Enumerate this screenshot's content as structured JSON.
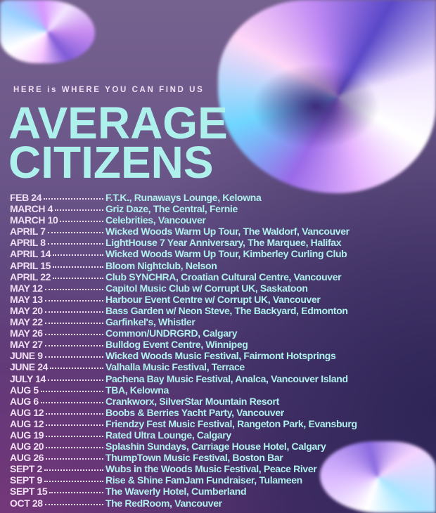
{
  "header": {
    "subtitle": "HERE is WHERE YOU CAN FIND US",
    "title_line_1": "AVERAGE",
    "title_line_2": "CITIZENS"
  },
  "colors": {
    "title": "#aef0ec",
    "date": "#f1def4",
    "background": "#6a5588"
  },
  "schedule": [
    {
      "date": "FEB 24",
      "venue": "F.T.K., Runaways Lounge, Kelowna"
    },
    {
      "date": "MARCH 4",
      "venue": "Griz Daze, The Central, Fernie"
    },
    {
      "date": "MARCH 10",
      "venue": "Celebrities, Vancouver"
    },
    {
      "date": "APRIL 7",
      "venue": "Wicked Woods Warm Up Tour, The Waldorf, Vancouver"
    },
    {
      "date": "APRIL 8",
      "venue": "LightHouse 7 Year Anniversary, The Marquee, Halifax"
    },
    {
      "date": "APRIL 14",
      "venue": "Wicked Woods Warm Up Tour, Kimberley Curling Club"
    },
    {
      "date": "APRIL 15",
      "venue": "Bloom Nightclub, Nelson"
    },
    {
      "date": "APRIL 22",
      "venue": "Club SYNCHRA, Croatian Cultural Centre, Vancouver"
    },
    {
      "date": "MAY 12",
      "venue": "Capitol Music Club w/ Corrupt UK, Saskatoon"
    },
    {
      "date": "MAY 13",
      "venue": "Harbour Event Centre w/ Corrupt UK, Vancouver"
    },
    {
      "date": "MAY 20",
      "venue": "Bass Garden w/ Neon Steve, The Backyard, Edmonton"
    },
    {
      "date": "MAY 22",
      "venue": "Garfinkel's, Whistler"
    },
    {
      "date": "MAY 26",
      "venue": "Common/UNDRGRD, Calgary"
    },
    {
      "date": "MAY 27",
      "venue": "Bulldog Event Centre, Winnipeg"
    },
    {
      "date": "JUNE 9",
      "venue": "Wicked Woods Music Festival, Fairmont Hotsprings"
    },
    {
      "date": "JUNE 24",
      "venue": "Valhalla Music Festival, Terrace"
    },
    {
      "date": "JULY 14",
      "venue": "Pachena Bay Music Festival, Analca, Vancouver Island"
    },
    {
      "date": "AUG 5",
      "venue": "TBA, Kelowna"
    },
    {
      "date": "AUG 6",
      "venue": "Crankworx, SilverStar Mountain Resort"
    },
    {
      "date": "AUG 12",
      "venue": "Boobs & Berries Yacht Party, Vancouver"
    },
    {
      "date": "AUG 12",
      "venue": "Friendzy Fest Music Festival, Rangeton Park, Evansburg"
    },
    {
      "date": "AUG 19",
      "venue": "Rated Ultra Lounge, Calgary"
    },
    {
      "date": "AUG 20",
      "venue": "Splashin Sundays, Carriage House Hotel, Calgary"
    },
    {
      "date": "AUG 26",
      "venue": "ThumpTown Music Festival, Boston Bar"
    },
    {
      "date": "SEPT 2",
      "venue": "Wubs in the Woods Music Festival, Peace River"
    },
    {
      "date": "SEPT 9",
      "venue": "Rise & Shine FamJam Fundraiser, Tulameen"
    },
    {
      "date": "SEPT 15",
      "venue": "The Waverly Hotel, Cumberland"
    },
    {
      "date": "OCT 28",
      "venue": "The RedRoom, Vancouver"
    }
  ]
}
